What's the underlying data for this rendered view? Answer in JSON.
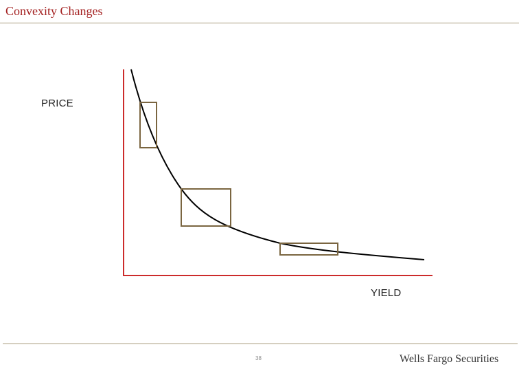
{
  "header": {
    "title": "Convexity Changes"
  },
  "diagram": {
    "y_axis_label": "PRICE",
    "x_axis_label": "YIELD",
    "colors": {
      "title": "#a31f1f",
      "axes": "#cc2b2b",
      "curve": "#000000",
      "boxes": "#7a6540",
      "rules": "#a79a7a"
    }
  },
  "footer": {
    "page_number": "38",
    "brand": "Wells Fargo Securities"
  }
}
